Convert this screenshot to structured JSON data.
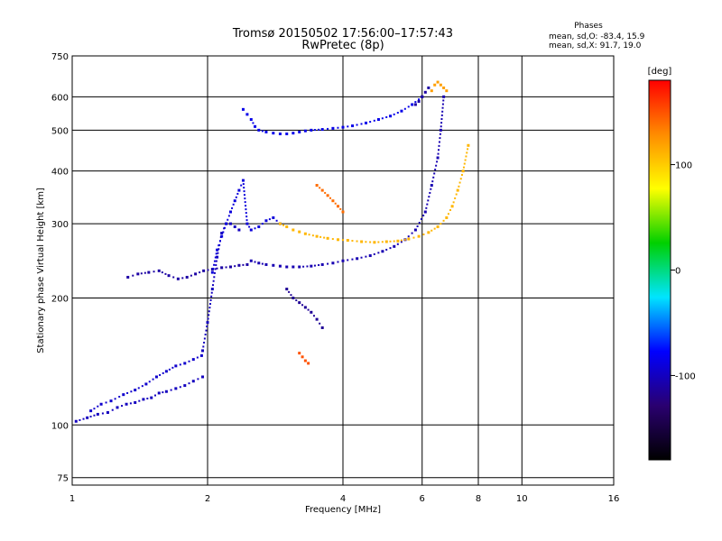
{
  "chart_data": {
    "type": "scatter",
    "title": "Tromsø 20150502 17:56:00–17:57:43",
    "subtitle": "RwPretec (8p)",
    "xlabel": "Frequency [MHz]",
    "ylabel": "Stationary phase Virtual Height [km]",
    "x_scale": "log",
    "y_scale": "log",
    "xlim": [
      1,
      16
    ],
    "ylim": [
      72,
      750
    ],
    "x_ticks": [
      1,
      2,
      4,
      6,
      8,
      10,
      16
    ],
    "y_ticks": [
      75,
      100,
      200,
      300,
      400,
      500,
      600,
      750
    ],
    "grid": true,
    "phases": {
      "title": "Phases",
      "line_o": "mean, sd,O: -83.4, 15.9",
      "line_x": "mean, sd,X:  91.7, 19.0"
    },
    "colorbar": {
      "label": "[deg]",
      "range": [
        -180,
        180
      ],
      "ticks": [
        100,
        0,
        -100
      ],
      "colors": [
        "#ff0000",
        "#ff8c00",
        "#ffff00",
        "#00d000",
        "#00e5ff",
        "#0000ff",
        "#2a0070",
        "#000000"
      ]
    },
    "series": [
      {
        "type": "trace",
        "phase": -100,
        "f": [
          1.02,
          1.08,
          1.14,
          1.2,
          1.26,
          1.32,
          1.38,
          1.44,
          1.5,
          1.56,
          1.62,
          1.7,
          1.78,
          1.86,
          1.95
        ],
        "h": [
          102,
          104,
          106,
          107,
          110,
          112,
          113,
          115,
          116,
          119,
          120,
          122,
          124,
          127,
          130
        ]
      },
      {
        "type": "trace",
        "phase": -95,
        "f": [
          1.1,
          1.16,
          1.22,
          1.3,
          1.38,
          1.46,
          1.54,
          1.62,
          1.7,
          1.78,
          1.86,
          1.94
        ],
        "h": [
          108,
          112,
          114,
          118,
          121,
          125,
          130,
          134,
          138,
          140,
          143,
          146
        ]
      },
      {
        "type": "trace",
        "phase": -110,
        "f": [
          1.33,
          1.4,
          1.48,
          1.56,
          1.64,
          1.72,
          1.8,
          1.88,
          1.96,
          2.05,
          2.15,
          2.25,
          2.35,
          2.45
        ],
        "h": [
          224,
          228,
          230,
          232,
          226,
          222,
          224,
          228,
          232,
          234,
          236,
          237,
          239,
          240
        ]
      },
      {
        "type": "trace",
        "phase": -100,
        "f": [
          1.95,
          2.0,
          2.05,
          2.1,
          2.15,
          2.2,
          2.25,
          2.3,
          2.35
        ],
        "h": [
          150,
          175,
          210,
          250,
          285,
          300,
          300,
          295,
          290
        ]
      },
      {
        "type": "trace",
        "phase": -90,
        "f": [
          2.05,
          2.1,
          2.15,
          2.2,
          2.25,
          2.3,
          2.35,
          2.4,
          2.45,
          2.5,
          2.6,
          2.7,
          2.8,
          2.9
        ],
        "h": [
          230,
          260,
          280,
          300,
          320,
          340,
          360,
          380,
          300,
          290,
          295,
          305,
          310,
          300
        ]
      },
      {
        "type": "trace",
        "phase": -85,
        "f": [
          2.4,
          2.45,
          2.5,
          2.55,
          2.6,
          2.7,
          2.8,
          2.9,
          3.0,
          3.1,
          3.2,
          3.3,
          3.4,
          3.6,
          3.8,
          4.0,
          4.2,
          4.5,
          4.8,
          5.1,
          5.4,
          5.7,
          6.0
        ],
        "h": [
          560,
          545,
          530,
          510,
          500,
          495,
          492,
          490,
          490,
          492,
          495,
          498,
          500,
          502,
          505,
          508,
          512,
          520,
          530,
          540,
          555,
          575,
          600
        ]
      },
      {
        "type": "trace",
        "phase": -105,
        "f": [
          2.5,
          2.6,
          2.7,
          2.8,
          2.9,
          3.0,
          3.1,
          3.2,
          3.4,
          3.6,
          3.8,
          4.0,
          4.3,
          4.6,
          4.9,
          5.2,
          5.5,
          5.8,
          6.1,
          6.3,
          6.5,
          6.6,
          6.7
        ],
        "h": [
          245,
          242,
          240,
          239,
          238,
          237,
          237,
          237,
          238,
          240,
          242,
          245,
          248,
          252,
          258,
          265,
          275,
          290,
          320,
          370,
          430,
          500,
          600
        ]
      },
      {
        "type": "trace",
        "phase": 110,
        "f": [
          2.9,
          3.0,
          3.1,
          3.2,
          3.3,
          3.5,
          3.7,
          3.9,
          4.1,
          4.4,
          4.7,
          5.0,
          5.3,
          5.6,
          5.9,
          6.2,
          6.5,
          6.8,
          7.0,
          7.2,
          7.4,
          7.6
        ],
        "h": [
          300,
          295,
          290,
          287,
          284,
          280,
          277,
          275,
          274,
          272,
          271,
          272,
          273,
          276,
          280,
          286,
          295,
          310,
          330,
          360,
          400,
          460
        ]
      },
      {
        "type": "trace",
        "phase": 140,
        "f": [
          3.5,
          3.6,
          3.7,
          3.8,
          3.9,
          4.0
        ],
        "h": [
          370,
          360,
          350,
          340,
          330,
          320
        ]
      },
      {
        "type": "trace",
        "phase": -115,
        "f": [
          3.0,
          3.1,
          3.2,
          3.3,
          3.4,
          3.5,
          3.6
        ],
        "h": [
          210,
          200,
          195,
          190,
          185,
          178,
          170
        ]
      },
      {
        "type": "trace",
        "phase": 150,
        "f": [
          3.2,
          3.25,
          3.3,
          3.35
        ],
        "h": [
          148,
          145,
          142,
          140
        ]
      },
      {
        "type": "trace",
        "phase": -110,
        "f": [
          5.8,
          5.9,
          6.0,
          6.1,
          6.2
        ],
        "h": [
          575,
          585,
          600,
          615,
          630
        ]
      },
      {
        "type": "trace",
        "phase": 120,
        "f": [
          6.3,
          6.4,
          6.5,
          6.6,
          6.7,
          6.8
        ],
        "h": [
          620,
          640,
          650,
          640,
          630,
          620
        ]
      }
    ]
  }
}
